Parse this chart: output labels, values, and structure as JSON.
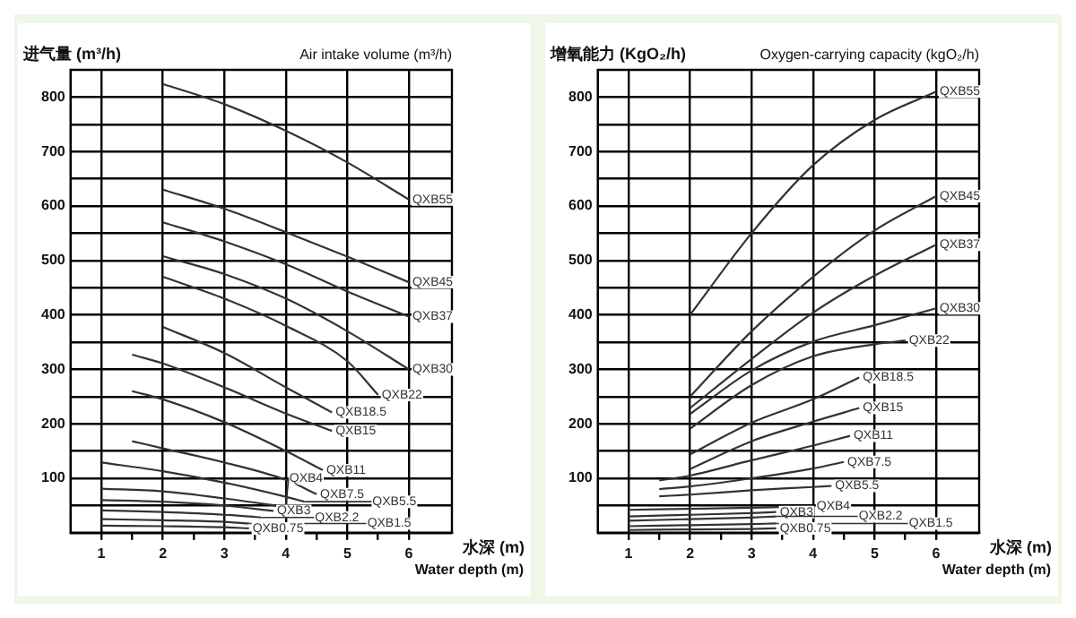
{
  "chart_data": [
    {
      "type": "line",
      "title": "Air intake volume (m³/h)",
      "ylabel": "进气量 (m³/h)",
      "xlabel": "Water depth (m)",
      "annotations": [
        "水深 (m)"
      ],
      "xlim": [
        0.5,
        6.7
      ],
      "xticks": [
        1,
        {
          "value": 1.5,
          "label": null
        },
        2,
        {
          "value": 2.5,
          "label": null
        },
        3,
        {
          "value": 3.5,
          "label": null
        },
        4,
        {
          "value": 4.5,
          "label": null
        },
        5,
        {
          "value": 5.5,
          "label": null
        },
        6
      ],
      "ylim": [
        0,
        850
      ],
      "yticks": [
        {
          "value": 0,
          "label": null
        },
        {
          "value": 50,
          "label": null
        },
        100,
        {
          "value": 150,
          "label": null
        },
        200,
        {
          "value": 250,
          "label": null
        },
        300,
        {
          "value": 350,
          "label": null
        },
        400,
        {
          "value": 450,
          "label": null
        },
        500,
        {
          "value": 550,
          "label": null
        },
        600,
        {
          "value": 650,
          "label": null
        },
        700,
        {
          "value": 750,
          "label": null
        },
        800
      ],
      "grid": true,
      "series": [
        {
          "name": "QXB55",
          "color": "#333333",
          "x": [
            2,
            3,
            4,
            5,
            6
          ],
          "values": [
            824,
            787,
            738,
            680,
            612
          ]
        },
        {
          "name": "QXB45",
          "color": "#333333",
          "x": [
            2,
            3,
            4,
            5,
            6
          ],
          "values": [
            630,
            595,
            552,
            507,
            460
          ]
        },
        {
          "name": "QXB37",
          "color": "#333333",
          "x": [
            2,
            3,
            4,
            5,
            6
          ],
          "values": [
            570,
            535,
            493,
            443,
            397
          ]
        },
        {
          "name": "QXB30",
          "color": "#333333",
          "x": [
            2,
            3,
            4,
            5,
            6
          ],
          "values": [
            508,
            475,
            430,
            370,
            300
          ]
        },
        {
          "name": "QXB22",
          "color": "#333333",
          "x": [
            2,
            3,
            4,
            5,
            5.5
          ],
          "values": [
            470,
            430,
            380,
            315,
            253
          ]
        },
        {
          "name": "QXB18.5",
          "color": "#333333",
          "x": [
            2,
            3,
            4,
            4.75
          ],
          "values": [
            378,
            330,
            267,
            221
          ]
        },
        {
          "name": "QXB15",
          "color": "#333333",
          "x": [
            1.5,
            2,
            3,
            4,
            4.75
          ],
          "values": [
            327,
            311,
            267,
            219,
            187
          ]
        },
        {
          "name": "QXB11",
          "color": "#333333",
          "x": [
            1.5,
            2,
            3,
            4,
            4.6
          ],
          "values": [
            260,
            245,
            203,
            150,
            115
          ]
        },
        {
          "name": "QXB7.5",
          "color": "#333333",
          "x": [
            1.5,
            2,
            3,
            4,
            4.5
          ],
          "values": [
            168,
            155,
            129,
            97,
            71
          ]
        },
        {
          "name": "QXB5.5",
          "color": "#333333",
          "x": [
            1,
            2,
            3,
            4,
            4.3
          ],
          "values": [
            129,
            113,
            92,
            66,
            57
          ]
        },
        {
          "name": "QXB4",
          "color": "#333333",
          "x": [
            1,
            2,
            3,
            4
          ],
          "values": [
            81,
            76,
            63,
            47
          ]
        },
        {
          "name": "QXB3",
          "color": "#333333",
          "x": [
            1,
            2,
            3,
            3.8
          ],
          "values": [
            60,
            57,
            50,
            40
          ]
        },
        {
          "name": "QXB2.2",
          "color": "#333333",
          "x": [
            1,
            2,
            3,
            3.6
          ],
          "values": [
            41,
            38,
            33,
            28
          ]
        },
        {
          "name": "QXB1.5",
          "color": "#333333",
          "x": [
            1,
            2,
            3,
            3.4
          ],
          "values": [
            25,
            23,
            20,
            17
          ]
        },
        {
          "name": "QXB0.75",
          "color": "#333333",
          "x": [
            1,
            2,
            3,
            3.4
          ],
          "values": [
            13,
            12,
            10,
            8
          ]
        }
      ]
    },
    {
      "type": "line",
      "title": "Oxygen-carrying capacity (kgO₂/h)",
      "ylabel": "增氧能力 (KgO₂/h)",
      "xlabel": "Water depth (m)",
      "annotations": [
        "水深 (m)"
      ],
      "xlim": [
        0.5,
        6.7
      ],
      "xticks": [
        1,
        {
          "value": 1.5,
          "label": null
        },
        2,
        {
          "value": 2.5,
          "label": null
        },
        3,
        {
          "value": 3.5,
          "label": null
        },
        4,
        {
          "value": 4.5,
          "label": null
        },
        5,
        {
          "value": 5.5,
          "label": null
        },
        6
      ],
      "ylim": [
        0,
        850
      ],
      "yticks": [
        {
          "value": 0,
          "label": null
        },
        {
          "value": 50,
          "label": null
        },
        100,
        {
          "value": 150,
          "label": null
        },
        200,
        {
          "value": 250,
          "label": null
        },
        300,
        {
          "value": 350,
          "label": null
        },
        400,
        {
          "value": 450,
          "label": null
        },
        500,
        {
          "value": 550,
          "label": null
        },
        600,
        {
          "value": 650,
          "label": null
        },
        700,
        {
          "value": 750,
          "label": null
        },
        800
      ],
      "grid": true,
      "series": [
        {
          "name": "QXB55",
          "color": "#333333",
          "x": [
            2,
            3,
            4,
            5,
            6
          ],
          "values": [
            400,
            550,
            675,
            758,
            810
          ]
        },
        {
          "name": "QXB45",
          "color": "#333333",
          "x": [
            2,
            3,
            4,
            5,
            6
          ],
          "values": [
            250,
            370,
            470,
            555,
            618
          ]
        },
        {
          "name": "QXB37",
          "color": "#333333",
          "x": [
            2,
            3,
            4,
            5,
            6
          ],
          "values": [
            229,
            319,
            404,
            472,
            529
          ]
        },
        {
          "name": "QXB30",
          "color": "#333333",
          "x": [
            2,
            3,
            4,
            5,
            6
          ],
          "values": [
            218,
            298,
            351,
            381,
            412
          ]
        },
        {
          "name": "QXB22",
          "color": "#333333",
          "x": [
            2,
            3,
            4,
            5,
            5.5
          ],
          "values": [
            191,
            271,
            324,
            346,
            353
          ]
        },
        {
          "name": "QXB18.5",
          "color": "#333333",
          "x": [
            2,
            3,
            4,
            4.75
          ],
          "values": [
            144,
            202,
            245,
            285
          ]
        },
        {
          "name": "QXB15",
          "color": "#333333",
          "x": [
            2,
            3,
            4,
            4.75
          ],
          "values": [
            117,
            168,
            204,
            229
          ]
        },
        {
          "name": "QXB11",
          "color": "#333333",
          "x": [
            1.5,
            2,
            3,
            4,
            4.6
          ],
          "values": [
            96,
            105,
            133,
            160,
            178
          ]
        },
        {
          "name": "QXB7.5",
          "color": "#333333",
          "x": [
            1.5,
            2,
            3,
            4,
            4.5
          ],
          "values": [
            80,
            85,
            100,
            118,
            130
          ]
        },
        {
          "name": "QXB5.5",
          "color": "#333333",
          "x": [
            1.5,
            2,
            3,
            4,
            4.3
          ],
          "values": [
            67,
            70,
            78,
            84,
            86
          ]
        },
        {
          "name": "QXB4",
          "color": "#333333",
          "x": [
            1,
            2,
            3,
            4
          ],
          "values": [
            42,
            44,
            46,
            48
          ]
        },
        {
          "name": "QXB3",
          "color": "#333333",
          "x": [
            1,
            2,
            3,
            3.4
          ],
          "values": [
            30,
            33,
            36,
            38
          ]
        },
        {
          "name": "QXB2.2",
          "color": "#333333",
          "x": [
            1,
            2,
            3,
            3.4
          ],
          "values": [
            22,
            25,
            28,
            30
          ]
        },
        {
          "name": "QXB1.5",
          "color": "#333333",
          "x": [
            1,
            2,
            3,
            3.4
          ],
          "values": [
            12,
            14,
            16,
            17
          ]
        },
        {
          "name": "QXB0.75",
          "color": "#333333",
          "x": [
            1,
            2,
            3,
            3.4
          ],
          "values": [
            5,
            6,
            7,
            8
          ]
        }
      ]
    }
  ]
}
